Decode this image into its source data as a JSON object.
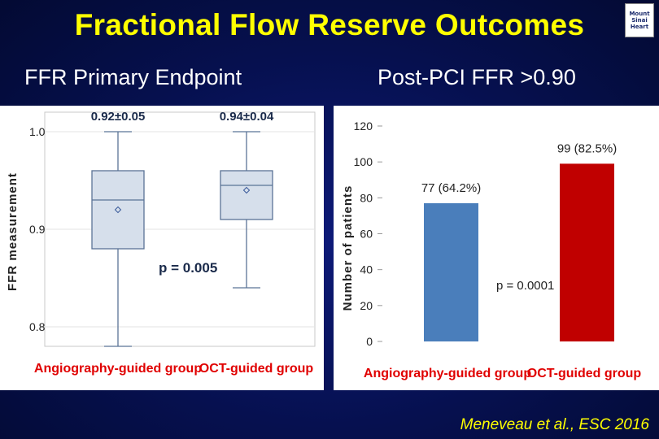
{
  "slide": {
    "title": "Fractional Flow Reserve Outcomes",
    "logo_text": [
      "Mount",
      "Sinai",
      "Heart"
    ],
    "left_subtitle": "FFR Primary Endpoint",
    "right_subtitle": "Post-PCI FFR >0.90",
    "citation": "Meneveau et al., ESC 2016"
  },
  "colors": {
    "title": "#ffff00",
    "box_fill": "#d6dfeb",
    "box_stroke": "#5a7396",
    "group_label": "#e00000",
    "bar_angio": "#4a7ebb",
    "bar_oct": "#c00000"
  },
  "chart_data": [
    {
      "type": "box",
      "ylabel": "FFR measurement",
      "ylim": [
        0.78,
        1.02
      ],
      "yticks": [
        0.8,
        0.9,
        1.0
      ],
      "ytick_labels": [
        "0.8",
        "0.9",
        "1.0"
      ],
      "grid": true,
      "categories": [
        "Angiography-guided group",
        "OCT-guided group"
      ],
      "boxes": [
        {
          "min": 0.78,
          "q1": 0.88,
          "median": 0.93,
          "mean": 0.92,
          "q3": 0.96,
          "max": 1.0,
          "label": "0.92±0.05"
        },
        {
          "min": 0.84,
          "q1": 0.91,
          "median": 0.945,
          "mean": 0.94,
          "q3": 0.96,
          "max": 1.0,
          "label": "0.94±0.04"
        }
      ],
      "annotation": "p = 0.005"
    },
    {
      "type": "bar",
      "ylabel": "Number of patients",
      "ylim": [
        0,
        120
      ],
      "yticks": [
        0,
        20,
        40,
        60,
        80,
        100,
        120
      ],
      "ytick_labels": [
        "0",
        "20",
        "40",
        "60",
        "80",
        "100",
        "120"
      ],
      "categories": [
        "Angiography-guided group",
        "OCT-guided group"
      ],
      "values": [
        77,
        99
      ],
      "value_labels": [
        "77 (64.2%)",
        "99 (82.5%)"
      ],
      "annotation": "p = 0.0001"
    }
  ]
}
